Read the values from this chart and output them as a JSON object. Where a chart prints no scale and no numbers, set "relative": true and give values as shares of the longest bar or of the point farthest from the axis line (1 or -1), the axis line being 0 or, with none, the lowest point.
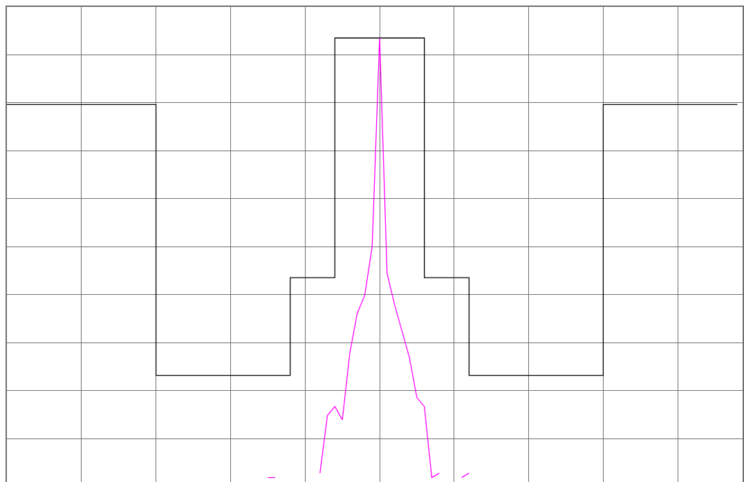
{
  "chart_data": {
    "type": "line",
    "relative": true,
    "grid": true,
    "categories": [
      null,
      null,
      null,
      null,
      null,
      null,
      null,
      null,
      null,
      null,
      null,
      null,
      null,
      null,
      null,
      null,
      null,
      null,
      null,
      null,
      null,
      null,
      null,
      null,
      null,
      null,
      null,
      null,
      null,
      null,
      null,
      null,
      null,
      null,
      null,
      null,
      null,
      null,
      null,
      null,
      null,
      null,
      null,
      null,
      null,
      null,
      null,
      null,
      null,
      null,
      null,
      null,
      null,
      null,
      null,
      null,
      null,
      null,
      null,
      null,
      null,
      null,
      null,
      null,
      null,
      null,
      null,
      null,
      null,
      null,
      null,
      null,
      null,
      null,
      null,
      null,
      null,
      null,
      null,
      null,
      null,
      null,
      null,
      null,
      null,
      null,
      null,
      null,
      null,
      null,
      null,
      null,
      null,
      null,
      null,
      null,
      null,
      null,
      null
    ],
    "series": [
      {
        "type": "step",
        "color": "#000000",
        "values": [
          0.85,
          0.85,
          0.85,
          0.85,
          0.85,
          0.85,
          0.85,
          0.85,
          0.85,
          0.85,
          0.85,
          0.85,
          0.85,
          0.85,
          0.85,
          0.85,
          0.85,
          0.85,
          0.85,
          0.85,
          0.24,
          0.24,
          0.24,
          0.24,
          0.24,
          0.24,
          0.24,
          0.24,
          0.24,
          0.24,
          0.24,
          0.24,
          0.24,
          0.24,
          0.24,
          0.24,
          0.24,
          0.24,
          0.46,
          0.46,
          0.46,
          0.46,
          0.46,
          0.46,
          1.0,
          1.0,
          1.0,
          1.0,
          1.0,
          1.0,
          1.0,
          1.0,
          1.0,
          1.0,
          1.0,
          1.0,
          0.46,
          0.46,
          0.46,
          0.46,
          0.46,
          0.46,
          0.24,
          0.24,
          0.24,
          0.24,
          0.24,
          0.24,
          0.24,
          0.24,
          0.24,
          0.24,
          0.24,
          0.24,
          0.24,
          0.24,
          0.24,
          0.24,
          0.24,
          0.24,
          0.85,
          0.85,
          0.85,
          0.85,
          0.85,
          0.85,
          0.85,
          0.85,
          0.85,
          0.85,
          0.85,
          0.85,
          0.85,
          0.85,
          0.85,
          0.85,
          0.85,
          0.85,
          0.85
        ]
      },
      {
        "color": "#ff00ff",
        "values": [
          null,
          null,
          null,
          null,
          null,
          null,
          null,
          null,
          null,
          null,
          null,
          null,
          null,
          null,
          null,
          null,
          null,
          null,
          null,
          null,
          null,
          null,
          null,
          null,
          null,
          null,
          null,
          null,
          null,
          null,
          null,
          null,
          null,
          null,
          null,
          0.01,
          0.01,
          null,
          null,
          null,
          null,
          null,
          0.02,
          0.15,
          0.17,
          0.14,
          0.29,
          0.38,
          0.42,
          0.53,
          1.0,
          0.47,
          0.4,
          0.34,
          0.28,
          0.19,
          0.17,
          0.01,
          0.02,
          null,
          null,
          0.01,
          0.02,
          null,
          null,
          null,
          null,
          null,
          null,
          null,
          null,
          null,
          null,
          null,
          null,
          null,
          null,
          null,
          null,
          null,
          null,
          null,
          null,
          null,
          null,
          null,
          null,
          null,
          null,
          null,
          null,
          null,
          null,
          null,
          null,
          null,
          null,
          null,
          null
        ]
      }
    ]
  }
}
